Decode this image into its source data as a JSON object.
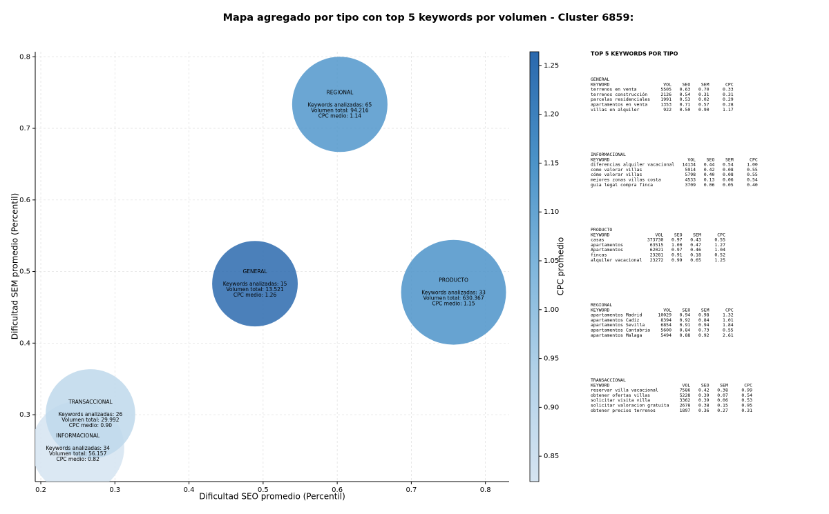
{
  "chart_data": {
    "type": "bubble",
    "title": "Mapa agregado por tipo con top 5 keywords por volumen - Cluster 6859:",
    "x_label": "Dificultad SEO promedio (Percentil)",
    "y_label": "Dificultad SEM promedio (Percentil)",
    "colorbar_label": "CPC promedio",
    "xlim": [
      0.1925,
      0.832
    ],
    "ylim": [
      0.2066,
      0.807
    ],
    "xticks": [
      0.2,
      0.3,
      0.4,
      0.5,
      0.6,
      0.7,
      0.8
    ],
    "yticks": [
      0.3,
      0.4,
      0.5,
      0.6,
      0.7,
      0.8
    ],
    "clim": [
      0.824,
      1.264
    ],
    "cticks": [
      0.85,
      {
        "value": 0.9,
        "label": "0.90"
      },
      0.95,
      {
        "value": 1.0,
        "label": "1.00"
      },
      1.05,
      {
        "value": 1.1,
        "label": "1.10"
      },
      1.15,
      {
        "value": 1.2,
        "label": "1.20"
      },
      1.25
    ],
    "colormap": [
      "#d5e4f1",
      "#b3d2e9",
      "#7fb6dc",
      "#4a92c8",
      "#2a68ad"
    ],
    "grid": true,
    "points": [
      {
        "name": "GENERAL",
        "x": 0.489,
        "y": 0.483,
        "keywords": 15,
        "volume": 13521,
        "cpc": 1.26,
        "labels": [
          "Keywords analizadas: 15",
          "Volumen total: 13.521",
          "CPC medio: 1.26"
        ]
      },
      {
        "name": "INFORMACIONAL",
        "x": 0.25,
        "y": 0.254,
        "keywords": 34,
        "volume": 56157,
        "cpc": 0.82,
        "labels": [
          "Keywords analizadas: 34",
          "Volumen total: 56.157",
          "CPC medio: 0.82"
        ]
      },
      {
        "name": "PRODUCTO",
        "x": 0.757,
        "y": 0.471,
        "keywords": 33,
        "volume": 630367,
        "cpc": 1.15,
        "labels": [
          "Keywords analizadas: 33",
          "Volumen total: 630.367",
          "CPC medio: 1.15"
        ]
      },
      {
        "name": "REGIONAL",
        "x": 0.6035,
        "y": 0.7335,
        "keywords": 65,
        "volume": 94216,
        "cpc": 1.14,
        "labels": [
          "Keywords analizadas: 65",
          "Volumen total: 94.216",
          "CPC medio: 1.14"
        ]
      },
      {
        "name": "TRANSACCIONAL",
        "x": 0.267,
        "y": 0.301,
        "keywords": 26,
        "volume": 29992,
        "cpc": 0.9,
        "labels": [
          "Keywords analizadas: 26",
          "Volumen total: 29.992",
          "CPC medio: 0.90"
        ]
      }
    ],
    "panel": {
      "title": "TOP 5 KEYWORDS POR TIPO",
      "columns": [
        "KEYWORD",
        "VOL",
        "SEO",
        "SEM",
        "CPC"
      ],
      "groups": [
        {
          "name": "GENERAL",
          "rows": [
            [
              "terrenos en venta",
              "5505",
              "0.63",
              "0.70",
              "0.33"
            ],
            [
              "terrenos construcción",
              "2126",
              "0.54",
              "0.31",
              "0.31"
            ],
            [
              "parcelas residenciales",
              "1991",
              "0.53",
              "0.02",
              "0.29"
            ],
            [
              "apartamentos en venta",
              "1353",
              "0.71",
              "0.57",
              "0.28"
            ],
            [
              "villas en alquiler",
              "922",
              "0.50",
              "0.90",
              "1.17"
            ]
          ]
        },
        {
          "name": "INFORMACIONAL",
          "rows": [
            [
              "diferencias alquiler vacacional",
              "14134",
              "0.44",
              "0.54",
              "1.00"
            ],
            [
              "como valorar villas",
              "5914",
              "0.42",
              "0.08",
              "0.55"
            ],
            [
              "cómo valorar villas",
              "5798",
              "0.40",
              "0.08",
              "0.55"
            ],
            [
              "mejores zonas villas costa",
              "4533",
              "0.13",
              "0.06",
              "0.54"
            ],
            [
              "guia legal compra finca",
              "3709",
              "0.06",
              "0.05",
              "0.40"
            ]
          ]
        },
        {
          "name": "PRODUCTO",
          "rows": [
            [
              "casas",
              "373730",
              "0.97",
              "0.43",
              "0.55"
            ],
            [
              "apartamentos",
              "63515",
              "1.00",
              "0.47",
              "1.27"
            ],
            [
              "Apartamentos",
              "62021",
              "0.97",
              "0.46",
              "1.04"
            ],
            [
              "fincas",
              "23281",
              "0.91",
              "0.18",
              "0.52"
            ],
            [
              "alquiler vacacional",
              "23272",
              "0.99",
              "0.65",
              "1.25"
            ]
          ]
        },
        {
          "name": "REGIONAL",
          "rows": [
            [
              "apartamentos Madrid",
              "10029",
              "0.94",
              "0.98",
              "1.32"
            ],
            [
              "apartamentos Cadiz",
              "8394",
              "0.92",
              "0.84",
              "1.01"
            ],
            [
              "apartamentos Sevilla",
              "6854",
              "0.91",
              "0.94",
              "1.84"
            ],
            [
              "apartamentos Cantabria",
              "5600",
              "0.84",
              "0.73",
              "0.55"
            ],
            [
              "apartamentos Malaga",
              "5494",
              "0.88",
              "0.92",
              "2.61"
            ]
          ]
        },
        {
          "name": "TRANSACCIONAL",
          "rows": [
            [
              "reservar villa vacacional",
              "7586",
              "0.42",
              "0.38",
              "0.99"
            ],
            [
              "obtener ofertas villas",
              "5228",
              "0.39",
              "0.07",
              "0.54"
            ],
            [
              "solicitar visita villa",
              "3362",
              "0.39",
              "0.06",
              "0.53"
            ],
            [
              "solicitar valoracion gratuita",
              "2678",
              "0.38",
              "0.15",
              "0.95"
            ],
            [
              "obtener precios terrenos",
              "1897",
              "0.36",
              "0.27",
              "0.31"
            ]
          ]
        }
      ]
    }
  }
}
